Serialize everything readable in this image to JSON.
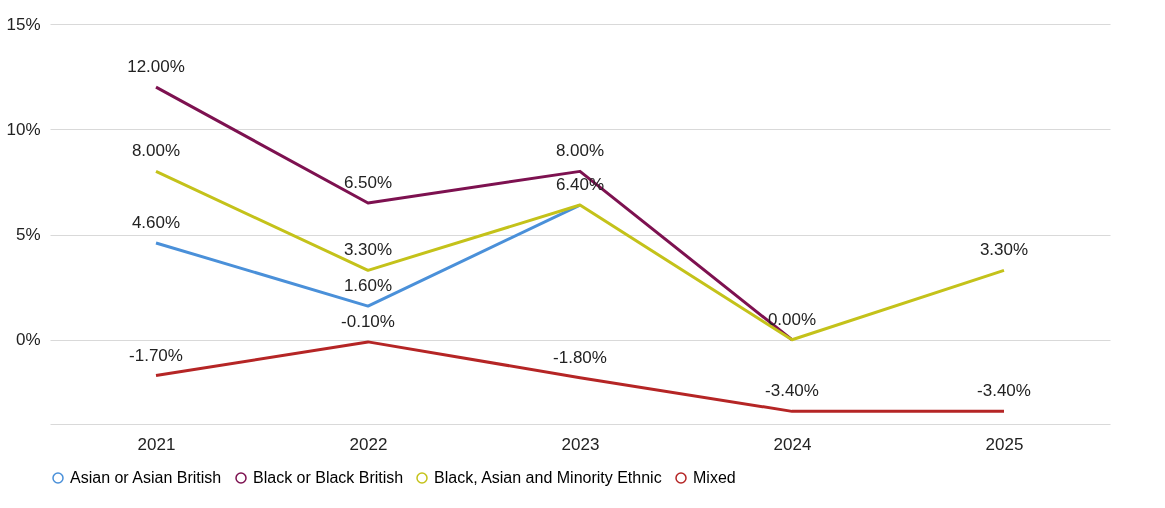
{
  "chart_data": {
    "type": "line",
    "categories": [
      "2021",
      "2022",
      "2023",
      "2024",
      "2025"
    ],
    "series": [
      {
        "name": "Asian or Asian British",
        "color": "#4a90d9",
        "values": [
          4.6,
          1.6,
          6.4,
          null,
          null
        ],
        "value_labels": [
          "4.60%",
          "1.60%",
          null,
          null,
          null
        ]
      },
      {
        "name": "Black or Black British",
        "color": "#7d1150",
        "values": [
          12.0,
          6.5,
          8.0,
          0.0,
          null
        ],
        "value_labels": [
          "12.00%",
          "6.50%",
          "8.00%",
          null,
          null
        ]
      },
      {
        "name": "Black, Asian and Minority Ethnic",
        "color": "#c4c21a",
        "values": [
          8.0,
          3.3,
          6.4,
          0.0,
          3.3
        ],
        "value_labels": [
          "8.00%",
          "3.30%",
          "6.40%",
          "0.00%",
          "3.30%"
        ]
      },
      {
        "name": "Mixed",
        "color": "#b52525",
        "values": [
          -1.7,
          -0.1,
          -1.8,
          -3.4,
          -3.4
        ],
        "value_labels": [
          "-1.70%",
          "-0.10%",
          "-1.80%",
          "-3.40%",
          "-3.40%"
        ]
      }
    ],
    "ylim": [
      -4,
      15
    ],
    "yticks": [
      {
        "value": 0,
        "label": "0%"
      },
      {
        "value": 5,
        "label": "5%"
      },
      {
        "value": 10,
        "label": "10%"
      },
      {
        "value": 15,
        "label": "15%"
      }
    ],
    "grid": "y",
    "legend": "bottom",
    "marker": "none",
    "line_style": "solid"
  }
}
